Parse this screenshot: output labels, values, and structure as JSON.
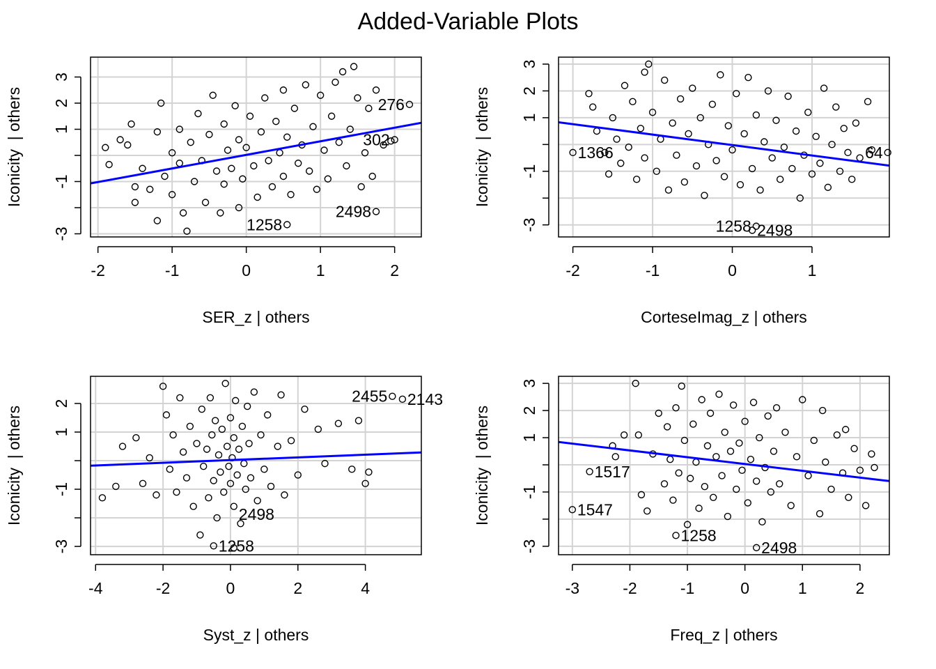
{
  "title": "Added-Variable Plots",
  "colors": {
    "fit_line": "#0000FF",
    "grid": "#D3D3D3",
    "points": "#000000"
  },
  "chart_data": [
    {
      "type": "scatter",
      "xlabel": "SER_z | others",
      "ylabel": "Iconicity  | others",
      "xlim": [
        -2.1,
        2.36
      ],
      "ylim": [
        -3.12,
        3.76
      ],
      "xticks": [
        -2,
        -1,
        0,
        1,
        2
      ],
      "yticks": [
        -3,
        -2,
        -1,
        0,
        1,
        2,
        3
      ],
      "yticklabels": [
        -3,
        -1,
        1,
        2,
        3
      ],
      "grid": true,
      "fit_line": {
        "slope": 0.52,
        "intercept": 0.02
      },
      "labeled_points": [
        {
          "label": "276",
          "x": 2.2,
          "y": 1.95,
          "side": "left"
        },
        {
          "label": "302",
          "x": 2.0,
          "y": 0.6,
          "side": "left"
        },
        {
          "label": "2498",
          "x": 1.75,
          "y": -2.15,
          "side": "left"
        },
        {
          "label": "1258",
          "x": 0.55,
          "y": -2.65,
          "side": "left"
        }
      ],
      "points": [
        [
          -1.9,
          0.3
        ],
        [
          -1.85,
          -0.35
        ],
        [
          -1.7,
          0.6
        ],
        [
          -1.6,
          0.4
        ],
        [
          -1.55,
          1.2
        ],
        [
          -1.5,
          -1.2
        ],
        [
          -1.5,
          -1.8
        ],
        [
          -1.4,
          -0.5
        ],
        [
          -1.3,
          -1.3
        ],
        [
          -1.2,
          0.9
        ],
        [
          -1.2,
          -2.5
        ],
        [
          -1.15,
          2.0
        ],
        [
          -1.1,
          -0.8
        ],
        [
          -1.0,
          0.1
        ],
        [
          -1.0,
          -1.5
        ],
        [
          -0.9,
          1.0
        ],
        [
          -0.9,
          -0.3
        ],
        [
          -0.85,
          -2.2
        ],
        [
          -0.8,
          -2.9
        ],
        [
          -0.75,
          0.5
        ],
        [
          -0.7,
          -1.0
        ],
        [
          -0.65,
          1.6
        ],
        [
          -0.6,
          -0.2
        ],
        [
          -0.55,
          -1.8
        ],
        [
          -0.5,
          0.8
        ],
        [
          -0.45,
          2.3
        ],
        [
          -0.4,
          -0.6
        ],
        [
          -0.35,
          -2.2
        ],
        [
          -0.3,
          1.2
        ],
        [
          -0.3,
          -1.1
        ],
        [
          -0.25,
          0.2
        ],
        [
          -0.2,
          -0.5
        ],
        [
          -0.15,
          1.9
        ],
        [
          -0.1,
          -2.0
        ],
        [
          -0.1,
          0.6
        ],
        [
          -0.05,
          -0.9
        ],
        [
          0.0,
          0.3
        ],
        [
          0.05,
          1.5
        ],
        [
          0.1,
          -0.4
        ],
        [
          0.15,
          -1.6
        ],
        [
          0.2,
          0.9
        ],
        [
          0.25,
          2.2
        ],
        [
          0.3,
          -0.2
        ],
        [
          0.35,
          -1.2
        ],
        [
          0.4,
          1.3
        ],
        [
          0.45,
          0.1
        ],
        [
          0.5,
          2.5
        ],
        [
          0.5,
          -0.8
        ],
        [
          0.55,
          0.7
        ],
        [
          0.6,
          -1.5
        ],
        [
          0.65,
          1.8
        ],
        [
          0.7,
          -0.3
        ],
        [
          0.75,
          0.4
        ],
        [
          0.8,
          2.7
        ],
        [
          0.85,
          -0.6
        ],
        [
          0.9,
          1.1
        ],
        [
          0.95,
          -1.3
        ],
        [
          1.0,
          2.3
        ],
        [
          1.05,
          0.2
        ],
        [
          1.1,
          -0.9
        ],
        [
          1.15,
          1.5
        ],
        [
          1.2,
          2.8
        ],
        [
          1.25,
          0.5
        ],
        [
          1.3,
          3.2
        ],
        [
          1.35,
          -0.4
        ],
        [
          1.4,
          1.0
        ],
        [
          1.45,
          3.4
        ],
        [
          1.5,
          2.2
        ],
        [
          1.55,
          -1.2
        ],
        [
          1.6,
          0.1
        ],
        [
          1.65,
          1.8
        ],
        [
          1.7,
          -0.8
        ],
        [
          1.75,
          2.5
        ],
        [
          1.85,
          0.4
        ],
        [
          1.95,
          0.55
        ]
      ]
    },
    {
      "type": "scatter",
      "xlabel": "CorteseImag_z | others",
      "ylabel": "Iconicity  | others",
      "xlim": [
        -2.18,
        1.97
      ],
      "ylim": [
        -3.45,
        3.26
      ],
      "xticks": [
        -2,
        -1,
        0,
        1
      ],
      "yticks": [
        -3,
        -2,
        -1,
        0,
        1,
        2,
        3
      ],
      "yticklabels": [
        -3,
        -1,
        1,
        2,
        3
      ],
      "grid": true,
      "fit_line": {
        "slope": -0.39,
        "intercept": -0.02
      },
      "labeled_points": [
        {
          "label": "1366",
          "x": -2.0,
          "y": -0.3,
          "side": "right"
        },
        {
          "label": "64",
          "x": 1.95,
          "y": -0.3,
          "side": "left"
        },
        {
          "label": "1258",
          "x": 0.3,
          "y": -3.05,
          "side": "left"
        },
        {
          "label": "2498",
          "x": 0.25,
          "y": -3.2,
          "side": "left"
        }
      ],
      "points": [
        [
          -1.8,
          1.9
        ],
        [
          -1.75,
          1.4
        ],
        [
          -1.7,
          0.5
        ],
        [
          -1.6,
          -0.3
        ],
        [
          -1.55,
          -1.1
        ],
        [
          -1.5,
          1.0
        ],
        [
          -1.45,
          0.2
        ],
        [
          -1.4,
          -0.7
        ],
        [
          -1.35,
          2.2
        ],
        [
          -1.3,
          -0.1
        ],
        [
          -1.25,
          1.6
        ],
        [
          -1.2,
          -1.3
        ],
        [
          -1.15,
          0.6
        ],
        [
          -1.1,
          2.7
        ],
        [
          -1.1,
          -0.5
        ],
        [
          -1.05,
          3.0
        ],
        [
          -1.0,
          1.2
        ],
        [
          -0.95,
          -1.0
        ],
        [
          -0.9,
          0.2
        ],
        [
          -0.85,
          2.4
        ],
        [
          -0.8,
          -1.7
        ],
        [
          -0.75,
          0.8
        ],
        [
          -0.7,
          -0.4
        ],
        [
          -0.65,
          1.7
        ],
        [
          -0.6,
          -1.4
        ],
        [
          -0.55,
          0.4
        ],
        [
          -0.5,
          2.1
        ],
        [
          -0.45,
          -0.8
        ],
        [
          -0.4,
          1.0
        ],
        [
          -0.35,
          -1.9
        ],
        [
          -0.3,
          0.0
        ],
        [
          -0.25,
          1.5
        ],
        [
          -0.2,
          -0.6
        ],
        [
          -0.15,
          2.6
        ],
        [
          -0.1,
          -1.2
        ],
        [
          -0.05,
          0.7
        ],
        [
          0.0,
          -0.2
        ],
        [
          0.05,
          1.9
        ],
        [
          0.1,
          -1.5
        ],
        [
          0.15,
          0.4
        ],
        [
          0.2,
          2.5
        ],
        [
          0.25,
          -0.9
        ],
        [
          0.3,
          1.1
        ],
        [
          0.35,
          -1.7
        ],
        [
          0.4,
          0.1
        ],
        [
          0.45,
          2.0
        ],
        [
          0.5,
          -0.5
        ],
        [
          0.55,
          0.9
        ],
        [
          0.6,
          -1.3
        ],
        [
          0.65,
          -0.1
        ],
        [
          0.7,
          1.8
        ],
        [
          0.75,
          -0.9
        ],
        [
          0.8,
          0.5
        ],
        [
          0.85,
          -2.0
        ],
        [
          0.9,
          -0.4
        ],
        [
          0.95,
          1.2
        ],
        [
          1.0,
          -1.1
        ],
        [
          1.05,
          0.3
        ],
        [
          1.1,
          -0.7
        ],
        [
          1.15,
          2.1
        ],
        [
          1.2,
          -1.6
        ],
        [
          1.25,
          0.0
        ],
        [
          1.3,
          1.4
        ],
        [
          1.35,
          -1.0
        ],
        [
          1.4,
          0.6
        ],
        [
          1.45,
          -0.3
        ],
        [
          1.5,
          -1.3
        ],
        [
          1.55,
          0.8
        ],
        [
          1.6,
          -0.5
        ],
        [
          1.7,
          1.6
        ],
        [
          1.75,
          -0.2
        ]
      ]
    },
    {
      "type": "scatter",
      "xlabel": "Syst_z | others",
      "ylabel": "Iconicity  | others",
      "xlim": [
        -4.15,
        5.66
      ],
      "ylim": [
        -3.29,
        2.95
      ],
      "xticks": [
        -4,
        -2,
        0,
        2,
        4
      ],
      "yticks": [
        -3,
        -2,
        -1,
        0,
        1,
        2
      ],
      "yticklabels": [
        -3,
        -1,
        1,
        2
      ],
      "grid": true,
      "fit_line": {
        "slope": 0.047,
        "intercept": 0.02
      },
      "labeled_points": [
        {
          "label": "2455",
          "x": 4.8,
          "y": 2.25,
          "side": "left"
        },
        {
          "label": "2143",
          "x": 5.1,
          "y": 2.15,
          "side": "left"
        },
        {
          "label": "1258",
          "x": -0.5,
          "y": -2.98,
          "side": "right"
        },
        {
          "label": "2498",
          "x": 0.1,
          "y": -3.05,
          "side": "right"
        }
      ],
      "points": [
        [
          -3.8,
          -1.3
        ],
        [
          -3.4,
          -0.9
        ],
        [
          -3.2,
          0.5
        ],
        [
          -2.8,
          0.8
        ],
        [
          -2.6,
          -0.8
        ],
        [
          -2.4,
          0.1
        ],
        [
          -2.2,
          -1.2
        ],
        [
          -2.0,
          2.6
        ],
        [
          -1.9,
          1.6
        ],
        [
          -1.8,
          -0.3
        ],
        [
          -1.7,
          0.9
        ],
        [
          -1.6,
          -1.1
        ],
        [
          -1.5,
          2.2
        ],
        [
          -1.4,
          0.3
        ],
        [
          -1.3,
          -0.6
        ],
        [
          -1.2,
          1.2
        ],
        [
          -1.1,
          -1.6
        ],
        [
          -1.0,
          0.6
        ],
        [
          -0.9,
          -2.6
        ],
        [
          -0.85,
          1.8
        ],
        [
          -0.8,
          -0.2
        ],
        [
          -0.7,
          0.4
        ],
        [
          -0.65,
          -1.3
        ],
        [
          -0.6,
          2.2
        ],
        [
          -0.55,
          0.9
        ],
        [
          -0.5,
          -0.7
        ],
        [
          -0.45,
          1.4
        ],
        [
          -0.4,
          -2.0
        ],
        [
          -0.35,
          0.2
        ],
        [
          -0.3,
          -0.4
        ],
        [
          -0.25,
          1.1
        ],
        [
          -0.2,
          -1.1
        ],
        [
          -0.15,
          2.7
        ],
        [
          -0.1,
          0.5
        ],
        [
          -0.05,
          -0.2
        ],
        [
          0.0,
          1.5
        ],
        [
          0.0,
          -0.8
        ],
        [
          0.05,
          0.1
        ],
        [
          0.1,
          -1.6
        ],
        [
          0.1,
          0.8
        ],
        [
          0.15,
          2.1
        ],
        [
          0.2,
          -0.5
        ],
        [
          0.25,
          0.4
        ],
        [
          0.3,
          -2.2
        ],
        [
          0.35,
          1.2
        ],
        [
          0.4,
          -0.1
        ],
        [
          0.45,
          -1.0
        ],
        [
          0.5,
          1.9
        ],
        [
          0.55,
          0.6
        ],
        [
          0.6,
          -0.6
        ],
        [
          0.7,
          2.4
        ],
        [
          0.8,
          -1.4
        ],
        [
          0.9,
          0.9
        ],
        [
          1.0,
          -0.3
        ],
        [
          1.1,
          1.6
        ],
        [
          1.2,
          -0.9
        ],
        [
          1.4,
          0.5
        ],
        [
          1.5,
          2.3
        ],
        [
          1.6,
          -1.2
        ],
        [
          1.8,
          0.7
        ],
        [
          2.0,
          -0.5
        ],
        [
          2.2,
          1.8
        ],
        [
          2.6,
          1.1
        ],
        [
          2.8,
          -0.1
        ],
        [
          3.2,
          1.3
        ],
        [
          3.6,
          -0.3
        ],
        [
          3.8,
          1.4
        ],
        [
          4.0,
          -0.8
        ],
        [
          4.1,
          -0.4
        ]
      ]
    },
    {
      "type": "scatter",
      "xlabel": "Freq_z | others",
      "ylabel": "Iconicity  | others",
      "xlim": [
        -3.24,
        2.51
      ],
      "ylim": [
        -3.31,
        3.26
      ],
      "xticks": [
        -3,
        -2,
        -1,
        0,
        1,
        2
      ],
      "yticks": [
        -3,
        -2,
        -1,
        0,
        1,
        2,
        3
      ],
      "yticklabels": [
        -3,
        -1,
        1,
        2,
        3
      ],
      "grid": true,
      "fit_line": {
        "slope": -0.25,
        "intercept": 0.03
      },
      "labeled_points": [
        {
          "label": "1517",
          "x": -2.7,
          "y": -0.25,
          "side": "right"
        },
        {
          "label": "1547",
          "x": -3.0,
          "y": -1.65,
          "side": "right"
        },
        {
          "label": "1258",
          "x": -1.2,
          "y": -2.6,
          "side": "right"
        },
        {
          "label": "2498",
          "x": 0.2,
          "y": -3.05,
          "side": "left"
        }
      ],
      "points": [
        [
          -2.3,
          0.7
        ],
        [
          -2.25,
          0.3
        ],
        [
          -2.1,
          1.1
        ],
        [
          -1.9,
          3.0
        ],
        [
          -1.85,
          1.1
        ],
        [
          -1.8,
          -1.1
        ],
        [
          -1.7,
          -1.7
        ],
        [
          -1.6,
          0.4
        ],
        [
          -1.5,
          1.9
        ],
        [
          -1.4,
          -0.7
        ],
        [
          -1.35,
          1.4
        ],
        [
          -1.3,
          0.2
        ],
        [
          -1.25,
          -1.3
        ],
        [
          -1.2,
          2.1
        ],
        [
          -1.15,
          -0.3
        ],
        [
          -1.1,
          2.9
        ],
        [
          -1.05,
          0.9
        ],
        [
          -1.0,
          -2.2
        ],
        [
          -0.95,
          -0.5
        ],
        [
          -0.9,
          1.5
        ],
        [
          -0.85,
          0.1
        ],
        [
          -0.8,
          -1.6
        ],
        [
          -0.75,
          2.4
        ],
        [
          -0.7,
          -0.8
        ],
        [
          -0.65,
          0.7
        ],
        [
          -0.6,
          1.9
        ],
        [
          -0.55,
          -1.2
        ],
        [
          -0.5,
          0.3
        ],
        [
          -0.45,
          2.6
        ],
        [
          -0.4,
          -0.4
        ],
        [
          -0.35,
          1.2
        ],
        [
          -0.3,
          -1.9
        ],
        [
          -0.25,
          0.5
        ],
        [
          -0.2,
          2.2
        ],
        [
          -0.15,
          -0.9
        ],
        [
          -0.1,
          0.8
        ],
        [
          -0.05,
          -0.2
        ],
        [
          0.0,
          1.6
        ],
        [
          0.05,
          -1.4
        ],
        [
          0.1,
          0.2
        ],
        [
          0.15,
          2.3
        ],
        [
          0.2,
          -0.6
        ],
        [
          0.25,
          1.0
        ],
        [
          0.3,
          -2.1
        ],
        [
          0.35,
          -0.1
        ],
        [
          0.4,
          1.8
        ],
        [
          0.45,
          -1.0
        ],
        [
          0.5,
          0.5
        ],
        [
          0.55,
          2.1
        ],
        [
          0.6,
          -0.7
        ],
        [
          0.7,
          1.2
        ],
        [
          0.8,
          -1.5
        ],
        [
          0.9,
          0.3
        ],
        [
          1.0,
          2.4
        ],
        [
          1.1,
          -0.4
        ],
        [
          1.2,
          0.9
        ],
        [
          1.3,
          -1.8
        ],
        [
          1.35,
          2.0
        ],
        [
          1.4,
          0.1
        ],
        [
          1.5,
          -0.9
        ],
        [
          1.6,
          1.1
        ],
        [
          1.7,
          -0.3
        ],
        [
          1.75,
          1.3
        ],
        [
          1.8,
          -1.2
        ],
        [
          1.9,
          0.6
        ],
        [
          2.0,
          -0.2
        ],
        [
          2.1,
          -1.5
        ],
        [
          2.2,
          0.4
        ],
        [
          2.25,
          -0.1
        ]
      ]
    }
  ]
}
